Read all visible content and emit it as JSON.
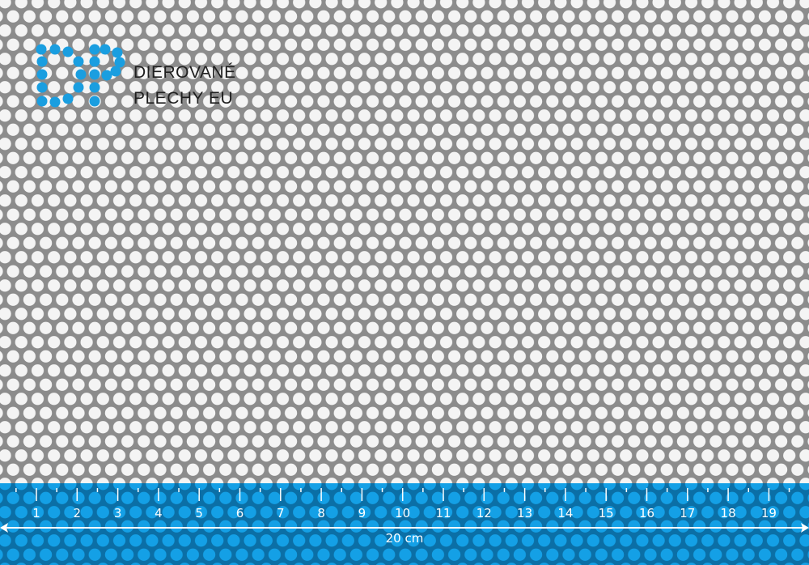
{
  "brand": {
    "line1": "DIEROVANÉ",
    "line2": "PLECHY EU",
    "logo_color": "#1a9ee0"
  },
  "ruler": {
    "labels": [
      "1",
      "2",
      "3",
      "4",
      "5",
      "6",
      "7",
      "8",
      "9",
      "10",
      "11",
      "12",
      "13",
      "14",
      "15",
      "16",
      "17",
      "18",
      "19"
    ],
    "length_label": "20 cm",
    "color": "#0e8fd6"
  },
  "sheet": {
    "metal_color": "#8f8f8f",
    "hole_color": "#ffffff"
  }
}
